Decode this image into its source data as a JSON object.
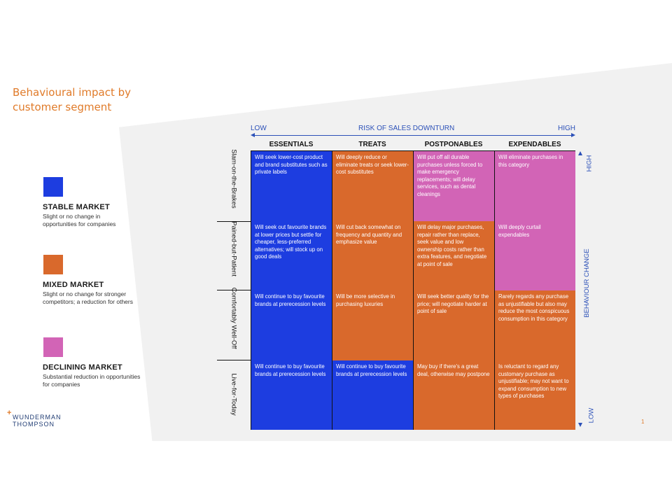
{
  "title": "Behavioural impact by customer segment",
  "legend": [
    {
      "color": "#1d3de0",
      "title": "STABLE MARKET",
      "desc": "Slight or no change in opportunities for companies"
    },
    {
      "color": "#d9692c",
      "title": "MIXED MARKET",
      "desc": "Slight or no change for stronger competitors; a reduction for others"
    },
    {
      "color": "#d264b6",
      "title": "DECLINING MARKET",
      "desc": "Substantial reduction in opportunities for companies"
    }
  ],
  "logo": {
    "line1": "WUNDERMAN",
    "line2": "THOMPSON"
  },
  "page_number": "1",
  "axis_top": {
    "low": "LOW",
    "label": "RISK OF SALES DOWNTURN",
    "high": "HIGH"
  },
  "axis_right": {
    "high": "HIGH",
    "label": "BEHAVIOUR CHANGE",
    "low": "LOW"
  },
  "columns": [
    "ESSENTIALS",
    "TREATS",
    "POSTPONABLES",
    "EXPENDABLES"
  ],
  "rows": [
    "Slam-on-the-Brakes",
    "Pained-but-Patient",
    "Comfortably Well-Off",
    "Live-for-Today"
  ],
  "cells": [
    [
      {
        "text": "Will seek lower-cost product and brand substitutes such as private labels",
        "color": "blue"
      },
      {
        "text": "Will deeply reduce or eliminate treats or seek lower-cost substitutes",
        "color": "orange"
      },
      {
        "text": "Will put off all durable purchases unless forced to make emergency replacements; will delay services, such as dental cleanings",
        "color": "pink"
      },
      {
        "text": "Will eliminate purchases in this category",
        "color": "pink"
      }
    ],
    [
      {
        "text": "Will seek out favourite brands at lower prices but settle for cheaper, less-preferred alternatives; will stock up on good deals",
        "color": "blue"
      },
      {
        "text": "Will cut back somewhat on frequency and quantity and emphasize value",
        "color": "orange"
      },
      {
        "text": "Will delay major purchases, repair rather than replace, seek value and low ownership costs rather than extra features, and negotiate at point of sale",
        "color": "orange"
      },
      {
        "text": "Will deeply curtail expendables",
        "color": "pink"
      }
    ],
    [
      {
        "text": "Will continue to buy favourite brands at prerecession levels",
        "color": "blue"
      },
      {
        "text": "Will be more selective in purchasing luxuries",
        "color": "orange"
      },
      {
        "text": "Will seek better quality for the price; will negotiate harder at point of sale",
        "color": "orange"
      },
      {
        "text": "Rarely regards any purchase as unjustifiable but also may reduce the most conspicuous consumption in this category",
        "color": "orange"
      }
    ],
    [
      {
        "text": "Will continue to buy favourite brands at prerecession levels",
        "color": "blue"
      },
      {
        "text": "Will continue to buy favourite brands at prerecession levels",
        "color": "blue"
      },
      {
        "text": "May buy if there's a great deal, otherwise may postpone",
        "color": "orange"
      },
      {
        "text": "Is reluctant to regard any customary purchase as unjustifiable; may not want to expand consumption to new types of purchases",
        "color": "orange"
      }
    ]
  ]
}
